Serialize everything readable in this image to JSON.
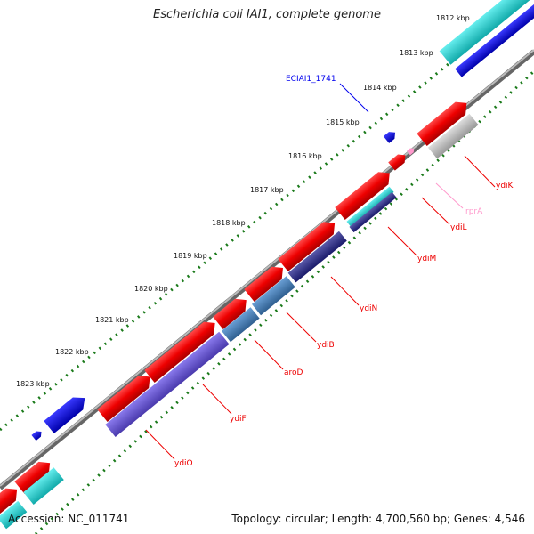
{
  "title": "Escherichia coli IAI1, complete genome",
  "accession": "Accession: NC_011741",
  "summary": "Topology: circular; Length: 4,700,560 bp; Genes: 4,546",
  "colors": {
    "backbone": "#888888",
    "tick": "#1a7a1a",
    "red": "#ff0000",
    "blue": "#0000ee",
    "cyan": "#22dddd",
    "gray": "#bbbbbb",
    "pink": "#ff99cc",
    "steel": "#4a7fb5",
    "purple": "#6a5acd",
    "navy": "#3a3a8a"
  },
  "kbp_labels": [
    "1812 kbp",
    "1813 kbp",
    "1814 kbp",
    "1815 kbp",
    "1816 kbp",
    "1817 kbp",
    "1818 kbp",
    "1819 kbp",
    "1820 kbp",
    "1821 kbp",
    "1822 kbp",
    "1823 kbp"
  ],
  "gene_labels": [
    "ECIAI1_1741",
    "ydiK",
    "rprA",
    "ydiL",
    "ydiM",
    "ydiN",
    "ydiB",
    "aroD",
    "ydiF",
    "ydiO"
  ]
}
